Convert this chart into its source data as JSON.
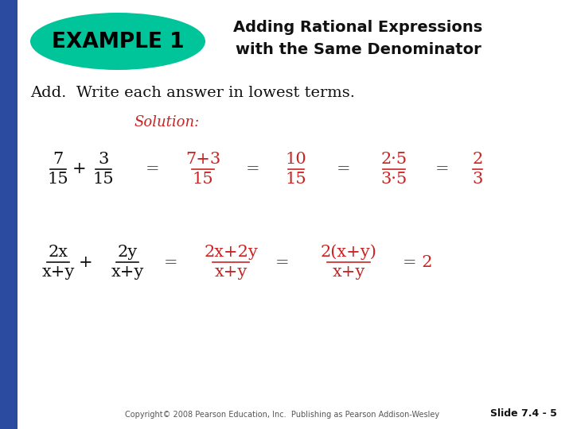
{
  "bg_color": "#ffffff",
  "left_bar_color": "#2B4BA0",
  "example_oval_color": "#00c49a",
  "example_text": "EXAMPLE 1",
  "title_line1": "Adding Rational Expressions",
  "title_line2": "with the Same Denominator",
  "subtitle": "Add.  Write each answer in lowest terms.",
  "solution_label": "Solution:",
  "solution_color": "#cc2222",
  "title_color": "#111111",
  "subtitle_color": "#111111",
  "example_text_color": "#000000",
  "black_math_color": "#111111",
  "red_math_color": "#cc2222",
  "footer_text": "Copyright© 2008 Pearson Education, Inc.  Publishing as Pearson Addison-Wesley",
  "slide_label": "Slide 7.4 - 5",
  "footer_color": "#555555",
  "slide_label_color": "#111111"
}
